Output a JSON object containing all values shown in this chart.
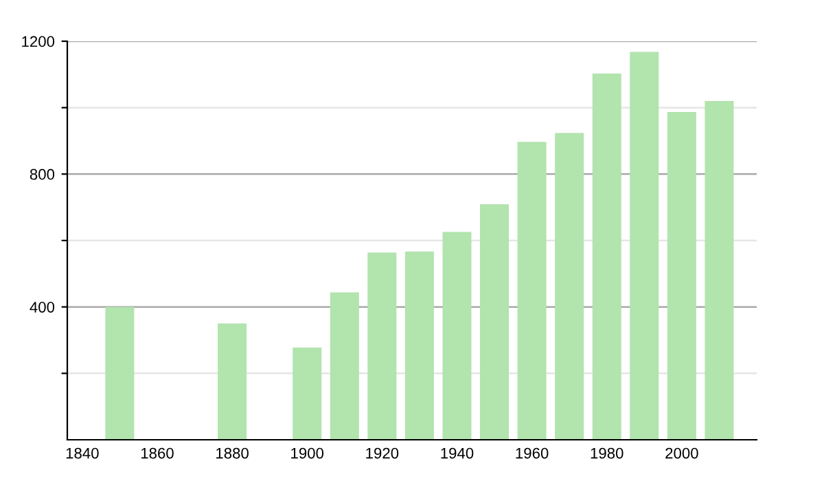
{
  "chart_data": {
    "type": "bar",
    "x": [
      1850,
      1880,
      1900,
      1910,
      1920,
      1930,
      1940,
      1950,
      1960,
      1970,
      1980,
      1990,
      2000,
      2010
    ],
    "values": [
      400,
      350,
      278,
      444,
      564,
      567,
      626,
      709,
      897,
      924,
      1103,
      1168,
      987,
      1020
    ],
    "color": "#b2e4ae",
    "xlim": [
      1836,
      2020
    ],
    "xticks": [
      1840,
      1860,
      1880,
      1900,
      1920,
      1940,
      1960,
      1980,
      2000
    ],
    "ylim": [
      0,
      1200
    ],
    "yticks": [
      {
        "value": 200,
        "label": null
      },
      400,
      {
        "value": 600,
        "label": null
      },
      800,
      {
        "value": 1000,
        "label": null
      },
      1200
    ],
    "grid": "y"
  }
}
